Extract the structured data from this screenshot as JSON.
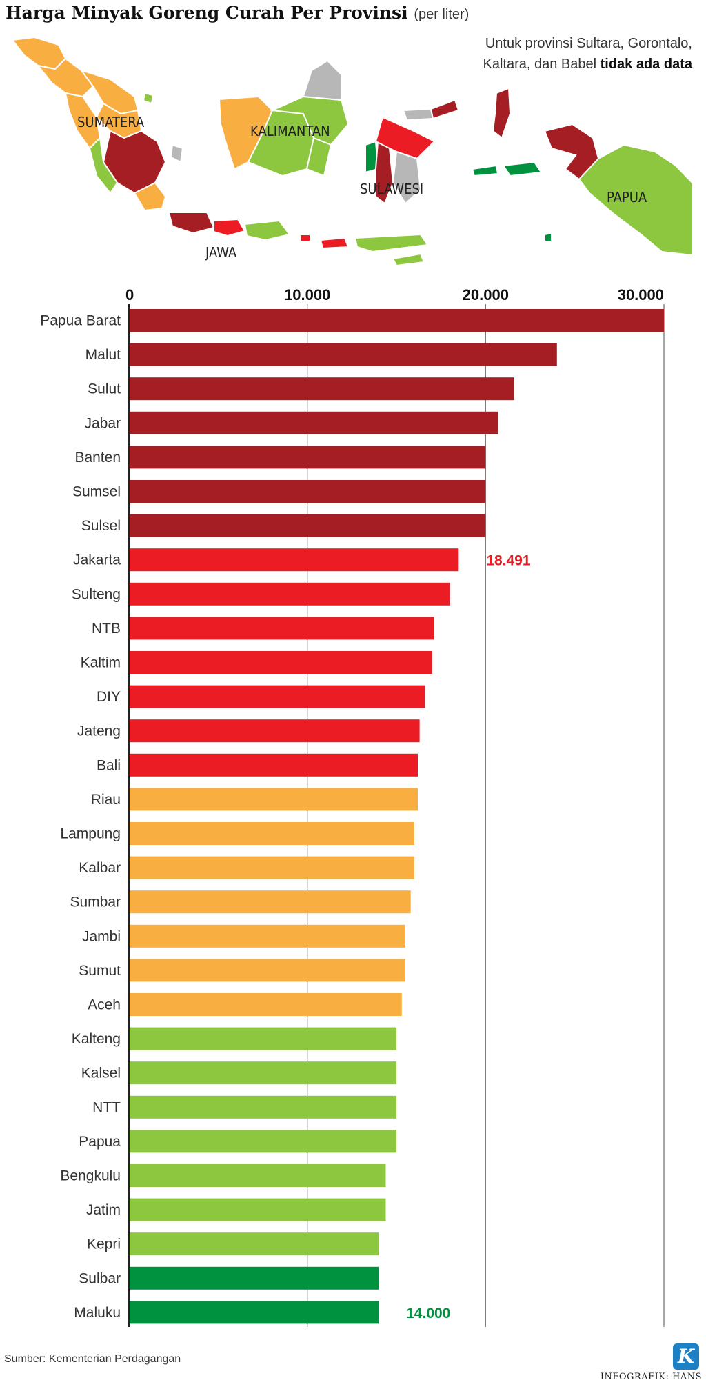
{
  "title": "Harga Minyak Goreng Curah Per Provinsi",
  "subtitle": "(per liter)",
  "note": {
    "line1": "Untuk provinsi Sultara, Gorontalo,",
    "line2": "Kaltara, dan Babel ",
    "bold": "tidak ada data"
  },
  "map": {
    "labels": {
      "sumatera": "SUMATERA",
      "kalimantan": "KALIMANTAN",
      "sulawesi": "SULAWESI",
      "papua": "PAPUA",
      "jawa": "JAWA"
    }
  },
  "colors": {
    "dark_red": "#a51e24",
    "red": "#ec1c24",
    "orange": "#f9ae41",
    "light_green": "#8dc63f",
    "dark_green": "#00923f",
    "no_data": "#b7b7b7"
  },
  "chart_data": {
    "type": "bar",
    "orientation": "horizontal",
    "xlim": [
      0,
      30000
    ],
    "ticks": [
      0,
      10000,
      20000,
      30000
    ],
    "tick_labels": [
      "0",
      "10.000",
      "20.000",
      "30.000"
    ],
    "grid": true,
    "categories": [
      "Papua Barat",
      "Malut",
      "Sulut",
      "Jabar",
      "Banten",
      "Sumsel",
      "Sulsel",
      "Jakarta",
      "Sulteng",
      "NTB",
      "Kaltim",
      "DIY",
      "Jateng",
      "Bali",
      "Riau",
      "Lampung",
      "Kalbar",
      "Sumbar",
      "Jambi",
      "Sumut",
      "Aceh",
      "Kalteng",
      "Kalsel",
      "NTT",
      "Papua",
      "Bengkulu",
      "Jatim",
      "Kepri",
      "Sulbar",
      "Maluku"
    ],
    "values": [
      30000,
      24000,
      21600,
      20700,
      20000,
      20000,
      20000,
      18491,
      18000,
      17100,
      17000,
      16600,
      16300,
      16200,
      16200,
      16000,
      16000,
      15800,
      15500,
      15500,
      15300,
      15000,
      15000,
      15000,
      15000,
      14400,
      14400,
      14000,
      14000,
      14000
    ],
    "bar_colors": [
      "dark_red",
      "dark_red",
      "dark_red",
      "dark_red",
      "dark_red",
      "dark_red",
      "dark_red",
      "red",
      "red",
      "red",
      "red",
      "red",
      "red",
      "red",
      "orange",
      "orange",
      "orange",
      "orange",
      "orange",
      "orange",
      "orange",
      "light_green",
      "light_green",
      "light_green",
      "light_green",
      "light_green",
      "light_green",
      "light_green",
      "dark_green",
      "dark_green"
    ],
    "annotations": [
      {
        "category": "Jakarta",
        "text": "18.491",
        "color": "#ec1c24"
      },
      {
        "category": "Maluku",
        "text": "14.000",
        "color": "#00923f"
      }
    ]
  },
  "footer": {
    "source": "Sumber: Kementerian Perdagangan",
    "credit": "INFOGRAFIK: HANS",
    "logo": "K"
  }
}
